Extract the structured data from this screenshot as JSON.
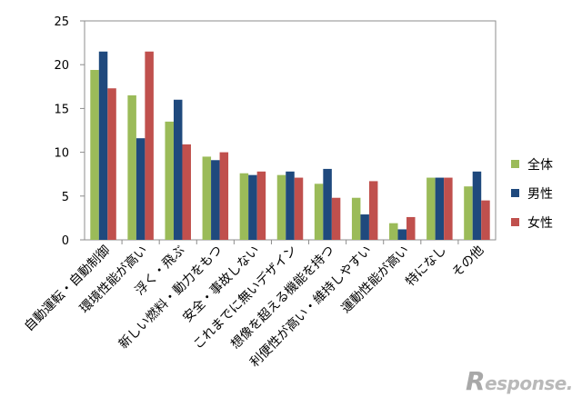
{
  "chart_data": {
    "type": "bar",
    "categories": [
      "自動運転・自動制御",
      "環境性能が高い",
      "浮く・飛ぶ",
      "新しい燃料・動力をもつ",
      "安全・事故しない",
      "これまでに無いデザイン",
      "想像を超える機能を持つ",
      "利便性が高い・維持しやすい",
      "運動性能が高い",
      "特になし",
      "その他"
    ],
    "series": [
      {
        "name": "全体",
        "color": "#9bbb59",
        "values": [
          19.4,
          16.5,
          13.5,
          9.5,
          7.6,
          7.4,
          6.4,
          4.8,
          1.9,
          7.1,
          6.1
        ]
      },
      {
        "name": "男性",
        "color": "#1f497d",
        "values": [
          21.5,
          11.6,
          16.0,
          9.1,
          7.4,
          7.8,
          8.1,
          2.9,
          1.2,
          7.1,
          7.8
        ]
      },
      {
        "name": "女性",
        "color": "#c0504d",
        "values": [
          17.3,
          21.5,
          10.9,
          10.0,
          7.8,
          7.1,
          4.8,
          6.7,
          2.6,
          7.1,
          4.5
        ]
      }
    ],
    "ylim": [
      0,
      25
    ],
    "yticks": [
      0,
      5,
      10,
      15,
      20,
      25
    ],
    "grid": false,
    "legend_position": "right",
    "xlabel": "",
    "ylabel": ""
  },
  "watermark": {
    "first": "R",
    "rest": "esponse."
  }
}
